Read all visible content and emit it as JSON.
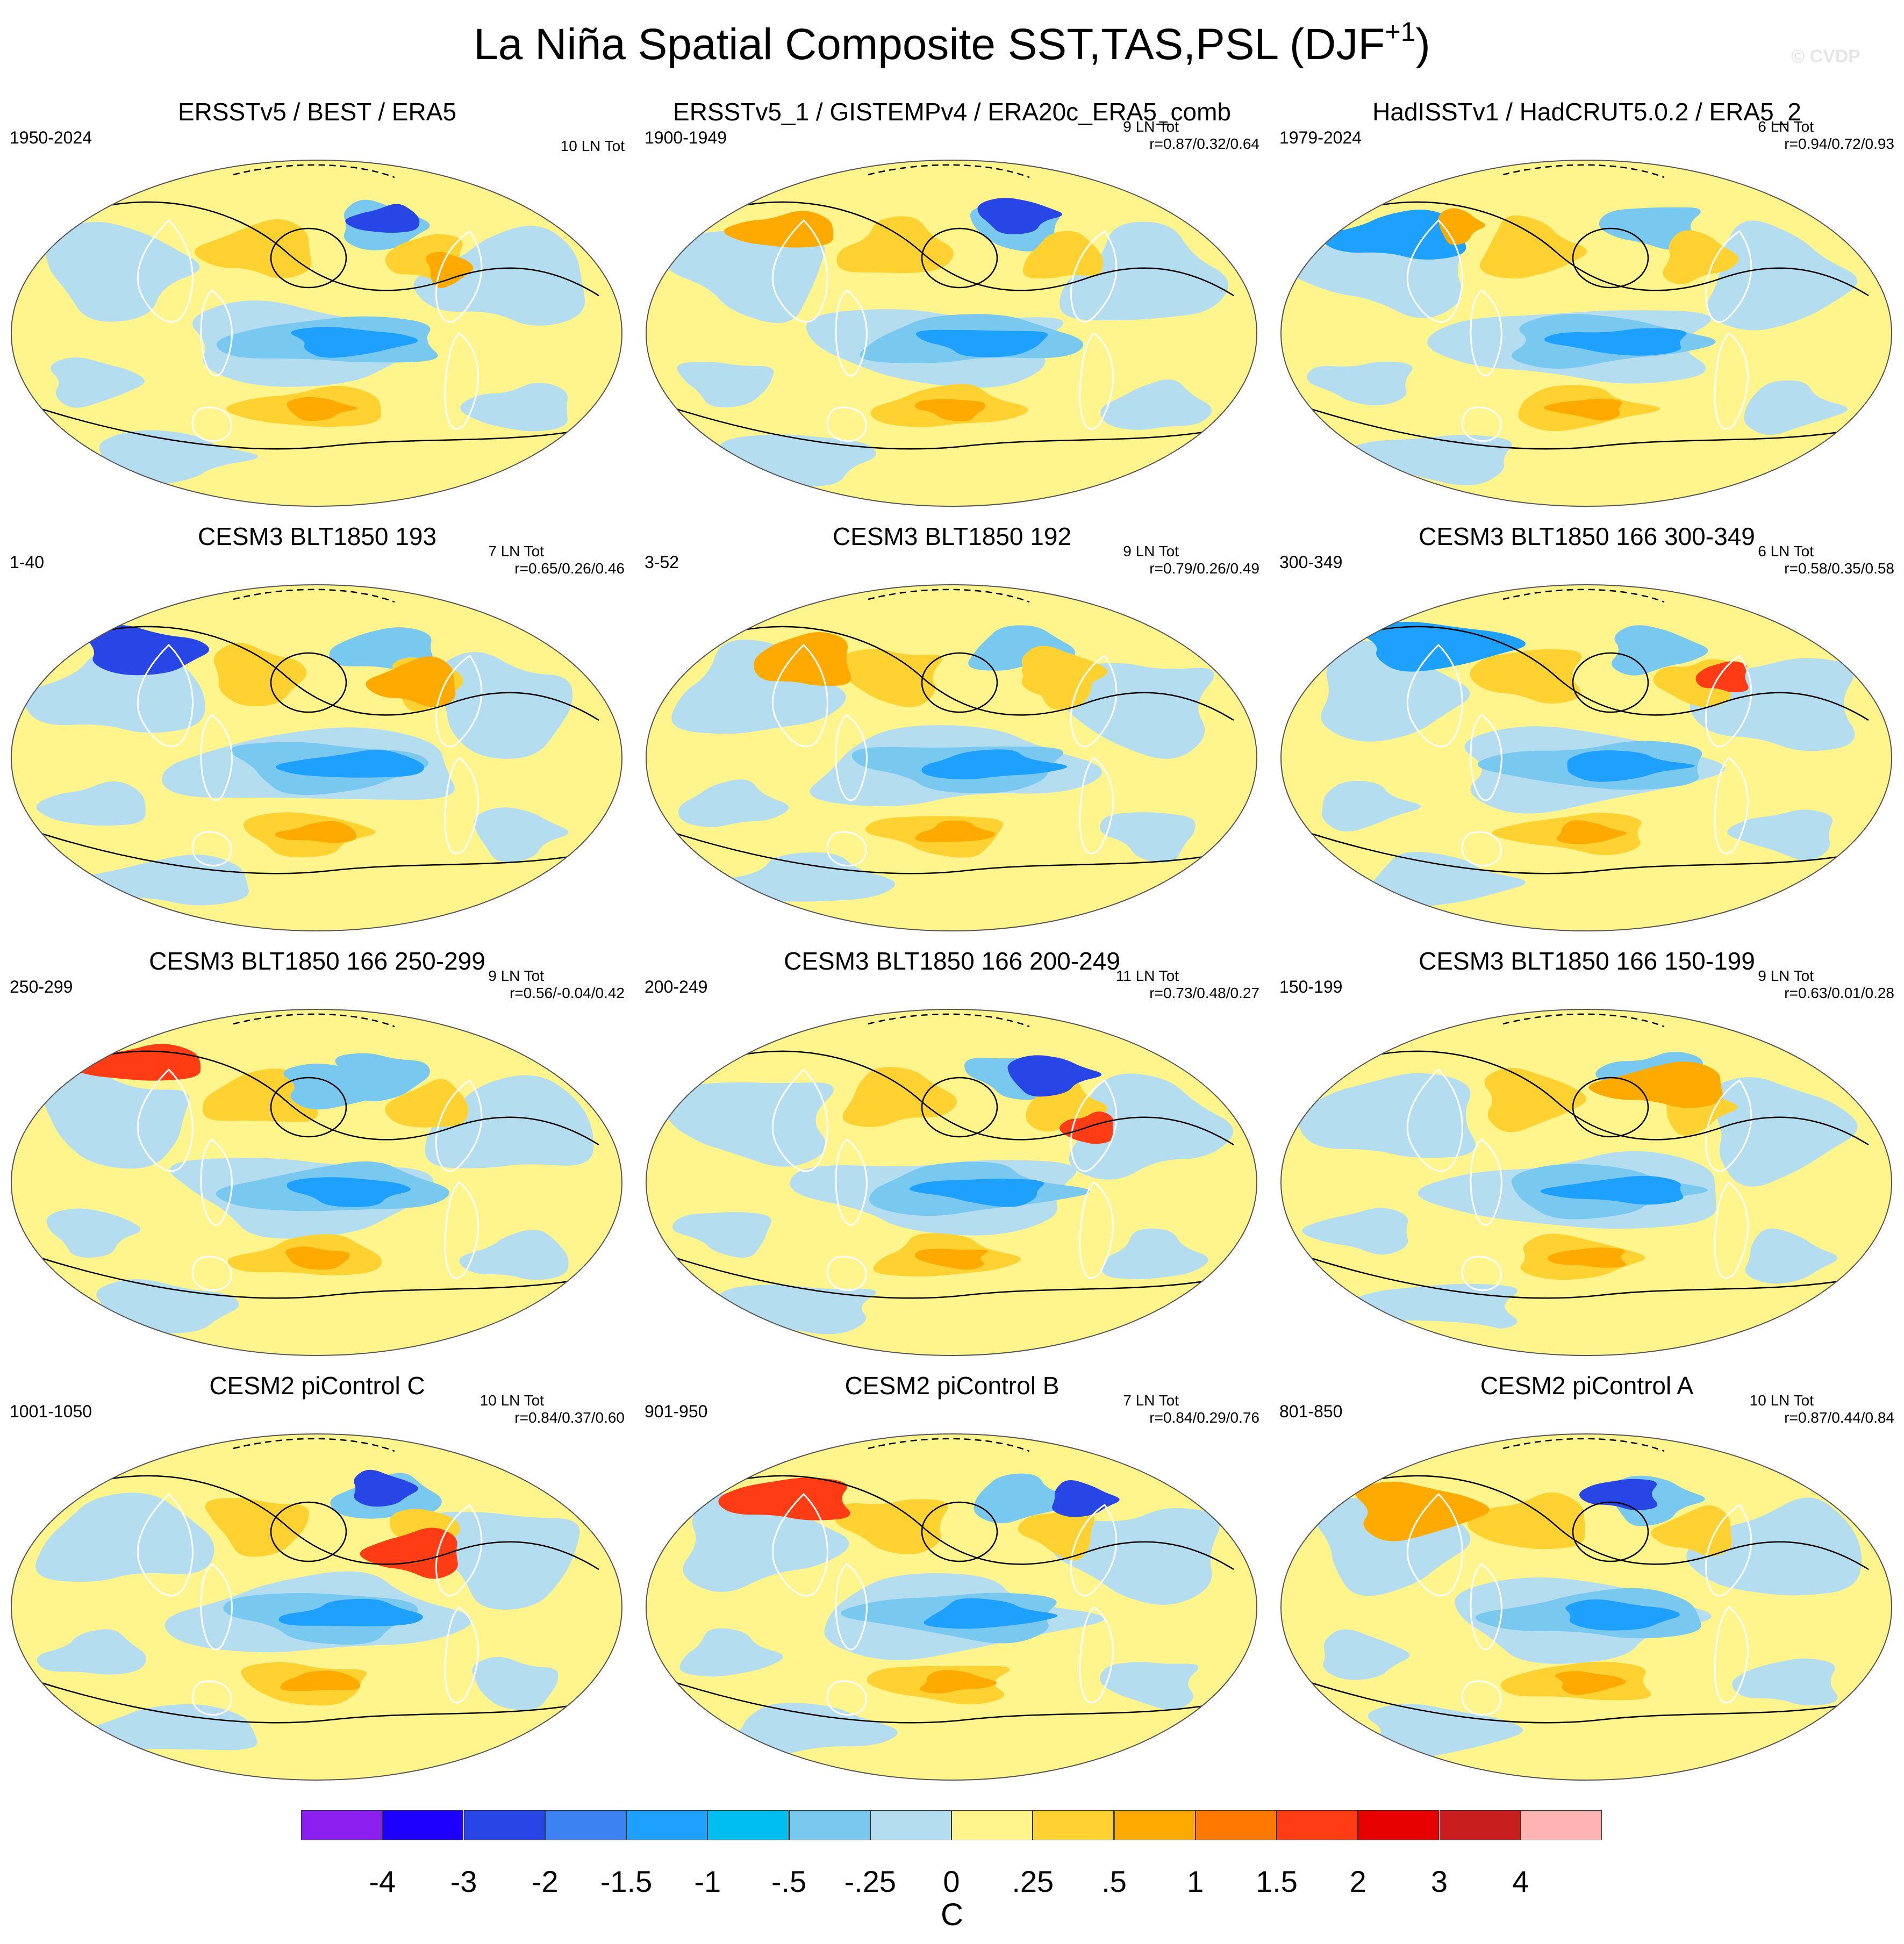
{
  "title": {
    "text": "La Niña Spatial Composite SST,TAS,PSL (DJF",
    "sup": "+1",
    "close": ")"
  },
  "watermark": "© CVDP",
  "panels": [
    {
      "title": "ERSSTv5 / BEST / ERA5",
      "years": "1950-2024",
      "ln": "10 LN Tot",
      "r": ""
    },
    {
      "title": "ERSSTv5_1 / GISTEMPv4 / ERA20c_ERA5_comb",
      "years": "1900-1949",
      "ln": "9 LN Tot",
      "r": "r=0.87/0.32/0.64"
    },
    {
      "title": "HadISSTv1 / HadCRUT5.0.2 / ERA5_2",
      "years": "1979-2024",
      "ln": "6 LN Tot",
      "r": "r=0.94/0.72/0.93"
    },
    {
      "title": "CESM3 BLT1850 193",
      "years": "1-40",
      "ln": "7 LN Tot",
      "r": "r=0.65/0.26/0.46"
    },
    {
      "title": "CESM3 BLT1850 192",
      "years": "3-52",
      "ln": "9 LN Tot",
      "r": "r=0.79/0.26/0.49"
    },
    {
      "title": "CESM3 BLT1850 166 300-349",
      "years": "300-349",
      "ln": "6 LN Tot",
      "r": "r=0.58/0.35/0.58"
    },
    {
      "title": "CESM3 BLT1850 166 250-299",
      "years": "250-299",
      "ln": "9 LN Tot",
      "r": "r=0.56/-0.04/0.42"
    },
    {
      "title": "CESM3 BLT1850 166 200-249",
      "years": "200-249",
      "ln": "11 LN Tot",
      "r": "r=0.73/0.48/0.27"
    },
    {
      "title": "CESM3 BLT1850 166 150-199",
      "years": "150-199",
      "ln": "9 LN Tot",
      "r": "r=0.63/0.01/0.28"
    },
    {
      "title": "CESM2 piControl C",
      "years": "1001-1050",
      "ln": "10 LN Tot",
      "r": "r=0.84/0.37/0.60"
    },
    {
      "title": "CESM2 piControl B",
      "years": "901-950",
      "ln": "7 LN Tot",
      "r": "r=0.84/0.29/0.76"
    },
    {
      "title": "CESM2 piControl A",
      "years": "801-850",
      "ln": "10 LN Tot",
      "r": "r=0.87/0.44/0.84"
    }
  ],
  "colorbar": {
    "colors": [
      "#8a1ff0",
      "#1e00ff",
      "#2846e6",
      "#3c82f0",
      "#1ea0ff",
      "#00bef0",
      "#78c8f0",
      "#b4def0",
      "#fff58c",
      "#ffd232",
      "#ffaa00",
      "#ff7800",
      "#ff3c14",
      "#e60000",
      "#c81e1e",
      "#ffb4b4"
    ],
    "ticks": [
      "-4",
      "-3",
      "-2",
      "-1.5",
      "-1",
      "-.5",
      "-.25",
      "0",
      ".25",
      ".5",
      "1",
      "1.5",
      "2",
      "3",
      "4"
    ],
    "units": "C"
  },
  "map_palette": {
    "ocean_base": "#ffffff",
    "cool_light": "#b4def0",
    "cool_mid": "#78c8f0",
    "cool_strong": "#1ea0ff",
    "cool_deep": "#2846e6",
    "warm_light": "#fff58c",
    "warm_mid": "#ffd232",
    "warm_strong": "#ffaa00",
    "warm_deep": "#ff3c14",
    "contour": "#000000",
    "coast": "#ffffff"
  }
}
